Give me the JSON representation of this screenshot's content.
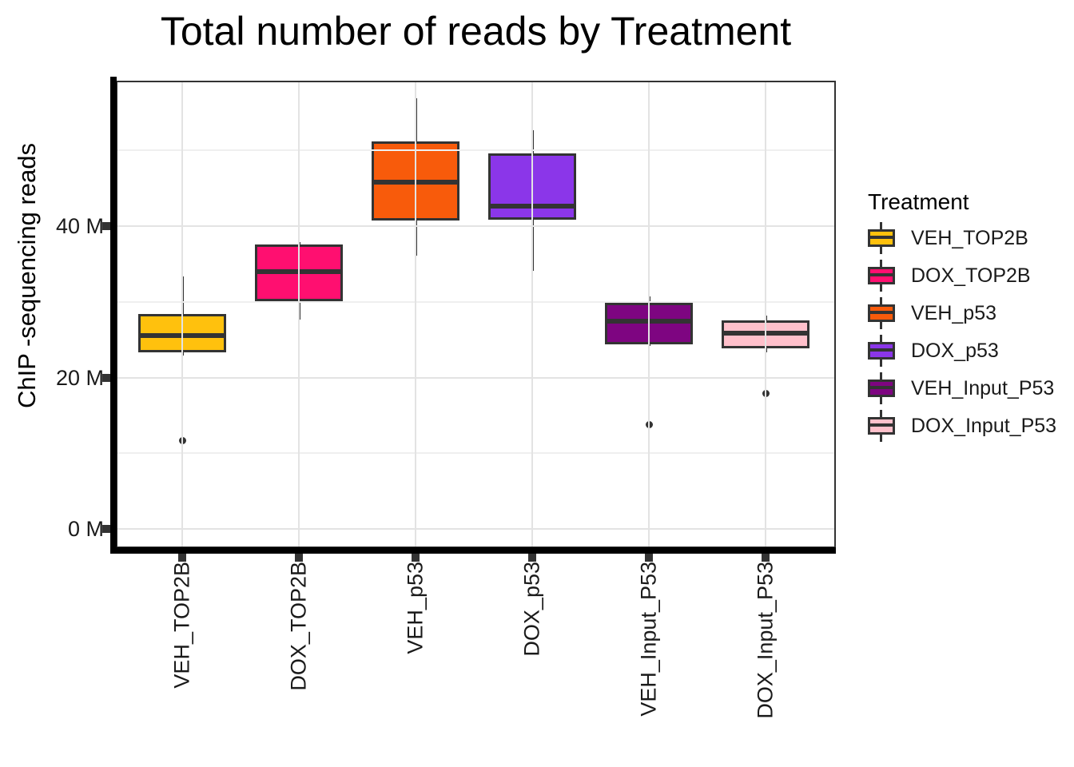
{
  "title": "Total number of reads by Treatment",
  "y_axis": {
    "label": "ChIP -sequencing reads",
    "tick_labels": [
      "0 M",
      "20 M",
      "40 M"
    ],
    "tick_values": [
      0,
      20,
      40
    ],
    "minor_gridline_values": [
      10,
      30,
      50
    ]
  },
  "x_axis": {
    "categories": [
      "VEH_TOP2B",
      "DOX_TOP2B",
      "VEH_p53",
      "DOX_p53",
      "VEH_Input_P53",
      "DOX_Input_P53"
    ]
  },
  "legend": {
    "title": "Treatment",
    "items": [
      {
        "label": "VEH_TOP2B",
        "color": "#FFC10D"
      },
      {
        "label": "DOX_TOP2B",
        "color": "#FF0F70"
      },
      {
        "label": "VEH_p53",
        "color": "#F85B0B"
      },
      {
        "label": "DOX_p53",
        "color": "#8B36E9"
      },
      {
        "label": "VEH_Input_P53",
        "color": "#7E0581"
      },
      {
        "label": "DOX_Input_P53",
        "color": "#FFC0CB"
      }
    ]
  },
  "chart_data": {
    "type": "boxplot",
    "title": "Total number of reads by Treatment",
    "xlabel": "",
    "ylabel": "ChIP -sequencing reads",
    "values_unit": "millions of reads (M)",
    "categories": [
      "VEH_TOP2B",
      "DOX_TOP2B",
      "VEH_p53",
      "DOX_p53",
      "VEH_Input_P53",
      "DOX_Input_P53"
    ],
    "ylim": [
      -2.5,
      59.2
    ],
    "y_major_ticks": [
      0,
      20,
      40
    ],
    "y_minor_gridlines": [
      10,
      30,
      50
    ],
    "grid": true,
    "legend_position": "right",
    "series": [
      {
        "name": "VEH_TOP2B",
        "color": "#FFC10D",
        "whisker_low": 22.9,
        "q1": 23.3,
        "median": 25.5,
        "q3": 28.4,
        "whisker_high": 33.4,
        "outliers": [
          11.7
        ]
      },
      {
        "name": "DOX_TOP2B",
        "color": "#FF0F70",
        "whisker_low": 27.6,
        "q1": 30.1,
        "median": 34.0,
        "q3": 37.6,
        "whisker_high": 37.9,
        "outliers": []
      },
      {
        "name": "VEH_p53",
        "color": "#F85B0B",
        "whisker_low": 36.1,
        "q1": 40.7,
        "median": 45.8,
        "q3": 51.2,
        "whisker_high": 56.9,
        "outliers": []
      },
      {
        "name": "DOX_p53",
        "color": "#8B36E9",
        "whisker_low": 34.1,
        "q1": 40.8,
        "median": 42.6,
        "q3": 49.6,
        "whisker_high": 52.7,
        "outliers": []
      },
      {
        "name": "VEH_Input_P53",
        "color": "#7E0581",
        "whisker_low": 24.2,
        "q1": 24.4,
        "median": 27.4,
        "q3": 29.9,
        "whisker_high": 30.7,
        "outliers": [
          13.8
        ]
      },
      {
        "name": "DOX_Input_P53",
        "color": "#FFC0CB",
        "whisker_low": 23.3,
        "q1": 23.9,
        "median": 25.9,
        "q3": 27.5,
        "whisker_high": 28.2,
        "outliers": [
          17.9
        ]
      }
    ],
    "style": {
      "box_outline": "#333333",
      "axis_line": "#000000",
      "major_grid": "#E3E3E3",
      "minor_grid": "#EFEFEF",
      "tick_text": "#1A1A1A"
    }
  }
}
